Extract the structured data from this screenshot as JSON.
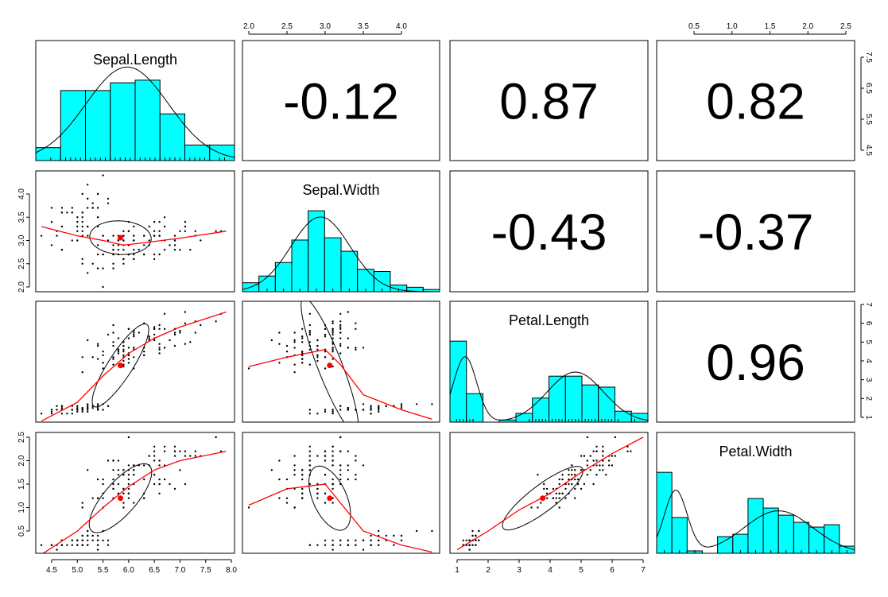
{
  "chart_data": {
    "type": "scatter",
    "title": "",
    "variables": [
      "Sepal.Length",
      "Sepal.Width",
      "Petal.Length",
      "Petal.Width"
    ],
    "ranges": [
      [
        4.3,
        7.9
      ],
      [
        2.0,
        4.4
      ],
      [
        1.0,
        6.9
      ],
      [
        0.1,
        2.5
      ]
    ],
    "ticks": [
      [
        "4.5",
        "5.0",
        "5.5",
        "6.0",
        "6.5",
        "7.0",
        "7.5",
        "8.0"
      ],
      [
        "2.0",
        "2.5",
        "3.0",
        "3.5",
        "4.0"
      ],
      [
        "1",
        "2",
        "3",
        "4",
        "5",
        "6",
        "7"
      ],
      [
        "0.5",
        "1.0",
        "1.5",
        "2.0",
        "2.5"
      ]
    ],
    "right_axis_ticks_row1": [
      "4.5",
      "5.5",
      "6.5",
      "7.5"
    ],
    "correlations": [
      {
        "row": 0,
        "col": 1,
        "label": "-0.12"
      },
      {
        "row": 0,
        "col": 2,
        "label": "0.87"
      },
      {
        "row": 0,
        "col": 3,
        "label": "0.82"
      },
      {
        "row": 1,
        "col": 2,
        "label": "-0.43"
      },
      {
        "row": 1,
        "col": 3,
        "label": "-0.37"
      },
      {
        "row": 2,
        "col": 3,
        "label": "0.96"
      }
    ],
    "means": [
      5.84,
      3.06,
      3.76,
      1.2
    ],
    "histograms": [
      {
        "breaks": [
          4.0,
          4.5,
          5.0,
          5.5,
          6.0,
          6.5,
          7.0,
          7.5,
          8.0
        ],
        "counts": [
          5,
          27,
          27,
          30,
          31,
          18,
          6,
          6
        ],
        "density_peaks": [
          {
            "m": 5.84,
            "s": 0.83,
            "w": 1
          }
        ]
      },
      {
        "breaks": [
          2.0,
          2.2,
          2.4,
          2.6,
          2.8,
          3.0,
          3.2,
          3.4,
          3.6,
          3.8,
          4.0,
          4.2,
          4.4
        ],
        "counts": [
          4,
          7,
          13,
          23,
          36,
          24,
          18,
          10,
          9,
          3,
          2,
          1
        ],
        "density_peaks": [
          {
            "m": 2.95,
            "s": 0.36,
            "w": 1
          }
        ]
      },
      {
        "breaks": [
          1.0,
          1.5,
          2.0,
          2.5,
          3.0,
          3.5,
          4.0,
          4.5,
          5.0,
          5.5,
          6.0,
          6.5,
          7.0
        ],
        "counts": [
          37,
          13,
          0,
          1,
          4,
          11,
          21,
          21,
          17,
          16,
          5,
          4
        ],
        "density_peaks": [
          {
            "m": 1.46,
            "s": 0.35,
            "w": 0.35
          },
          {
            "m": 4.8,
            "s": 0.85,
            "w": 0.65
          }
        ]
      },
      {
        "breaks": [
          0.0,
          0.2,
          0.4,
          0.6,
          0.8,
          1.0,
          1.2,
          1.4,
          1.6,
          1.8,
          2.0,
          2.2,
          2.4,
          2.6
        ],
        "counts": [
          34,
          15,
          1,
          0,
          7,
          8,
          23,
          19,
          16,
          13,
          11,
          12,
          3
        ],
        "density_peaks": [
          {
            "m": 0.25,
            "s": 0.15,
            "w": 0.33
          },
          {
            "m": 1.6,
            "s": 0.45,
            "w": 0.67
          }
        ]
      }
    ],
    "loess": {
      "0": {
        "1": [
          [
            4.3,
            3.3
          ],
          [
            5.0,
            3.1
          ],
          [
            5.5,
            3.0
          ],
          [
            5.9,
            2.9
          ],
          [
            6.3,
            2.95
          ],
          [
            7.0,
            3.05
          ],
          [
            7.9,
            3.2
          ]
        ]
      },
      "0_2": [
        [
          4.3,
          0.8
        ],
        [
          5.0,
          1.8
        ],
        [
          5.5,
          3.2
        ],
        [
          6.0,
          4.4
        ],
        [
          6.5,
          5.2
        ],
        [
          7.0,
          5.8
        ],
        [
          7.9,
          6.6
        ]
      ],
      "0_3": [
        [
          4.3,
          0.0
        ],
        [
          5.0,
          0.5
        ],
        [
          5.5,
          1.0
        ],
        [
          6.0,
          1.45
        ],
        [
          6.5,
          1.8
        ],
        [
          7.0,
          2.0
        ],
        [
          7.9,
          2.2
        ]
      ],
      "1_2": [
        [
          2.0,
          3.7
        ],
        [
          2.5,
          4.2
        ],
        [
          3.0,
          4.6
        ],
        [
          3.2,
          3.8
        ],
        [
          3.5,
          2.2
        ],
        [
          4.0,
          1.4
        ],
        [
          4.4,
          0.9
        ]
      ],
      "1_3": [
        [
          2.0,
          1.05
        ],
        [
          2.5,
          1.4
        ],
        [
          3.0,
          1.5
        ],
        [
          3.2,
          1.1
        ],
        [
          3.5,
          0.5
        ],
        [
          4.0,
          0.2
        ],
        [
          4.4,
          0.05
        ]
      ],
      "2_3": [
        [
          1.0,
          0.1
        ],
        [
          2.0,
          0.5
        ],
        [
          3.0,
          0.95
        ],
        [
          4.0,
          1.3
        ],
        [
          5.0,
          1.75
        ],
        [
          6.0,
          2.15
        ],
        [
          7.0,
          2.5
        ]
      ]
    },
    "ellipses": [
      {
        "pair": [
          0,
          1
        ],
        "cx": 5.84,
        "cy": 3.06,
        "a": 1.2,
        "b": 0.38,
        "rot": -0.05
      },
      {
        "pair": [
          0,
          2
        ],
        "cx": 5.84,
        "cy": 3.76,
        "a": 1.9,
        "b": 0.45,
        "rot": 1.0
      },
      {
        "pair": [
          0,
          3
        ],
        "cx": 5.84,
        "cy": 1.2,
        "a": 1.7,
        "b": 0.35,
        "rot": 0.85
      },
      {
        "pair": [
          1,
          2
        ],
        "cx": 3.06,
        "cy": 3.76,
        "a": 1.9,
        "b": 0.45,
        "rot": -1.2
      },
      {
        "pair": [
          1,
          3
        ],
        "cx": 3.06,
        "cy": 1.2,
        "a": 0.9,
        "b": 0.38,
        "rot": -1.15
      },
      {
        "pair": [
          2,
          3
        ],
        "cx": 3.76,
        "cy": 1.2,
        "a": 3.2,
        "b": 0.22,
        "rot": 0.65
      }
    ],
    "colors": {
      "hist": "#00ffff",
      "loess": "#ff0000",
      "mean_point": "#ff0000",
      "points": "#000000"
    },
    "grid": false
  }
}
